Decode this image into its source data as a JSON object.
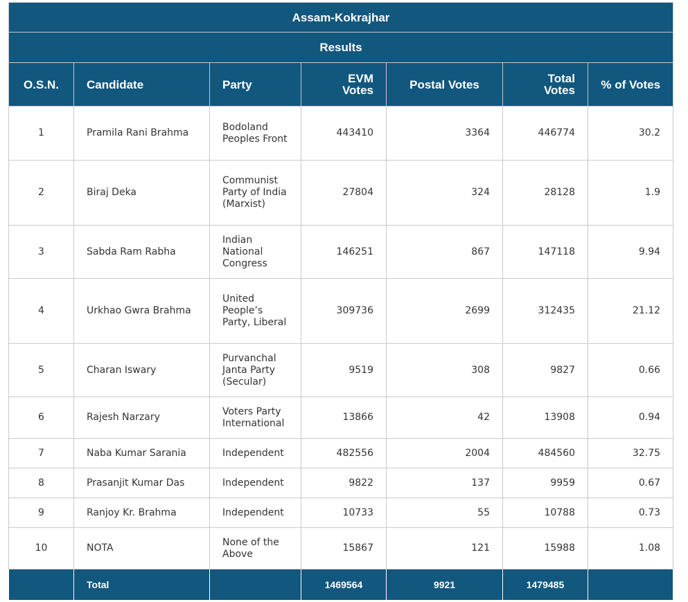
{
  "title": "Assam-Kokrajhar",
  "subtitle": "Results",
  "columns": {
    "osn": "O.S.N.",
    "candidate": "Candidate",
    "party": "Party",
    "evm": "EVM Votes",
    "postal": "Postal Votes",
    "total": "Total Votes",
    "pct": "% of Votes"
  },
  "rows": [
    {
      "osn": "1",
      "candidate": "Pramila Rani Brahma",
      "party": "Bodoland Peoples Front",
      "evm": "443410",
      "postal": "3364",
      "total": "446774",
      "pct": "30.2"
    },
    {
      "osn": "2",
      "candidate": "Biraj Deka",
      "party": "Communist Party of India (Marxist)",
      "evm": "27804",
      "postal": "324",
      "total": "28128",
      "pct": "1.9"
    },
    {
      "osn": "3",
      "candidate": "Sabda Ram Rabha",
      "party": "Indian National Congress",
      "evm": "146251",
      "postal": "867",
      "total": "147118",
      "pct": "9.94"
    },
    {
      "osn": "4",
      "candidate": "Urkhao Gwra Brahma",
      "party": "United People’s Party, Liberal",
      "evm": "309736",
      "postal": "2699",
      "total": "312435",
      "pct": "21.12"
    },
    {
      "osn": "5",
      "candidate": "Charan Iswary",
      "party": "Purvanchal Janta Party (Secular)",
      "evm": "9519",
      "postal": "308",
      "total": "9827",
      "pct": "0.66"
    },
    {
      "osn": "6",
      "candidate": "Rajesh Narzary",
      "party": "Voters Party International",
      "evm": "13866",
      "postal": "42",
      "total": "13908",
      "pct": "0.94"
    },
    {
      "osn": "7",
      "candidate": "Naba Kumar Sarania",
      "party": "Independent",
      "evm": "482556",
      "postal": "2004",
      "total": "484560",
      "pct": "32.75"
    },
    {
      "osn": "8",
      "candidate": "Prasanjit Kumar Das",
      "party": "Independent",
      "evm": "9822",
      "postal": "137",
      "total": "9959",
      "pct": "0.67"
    },
    {
      "osn": "9",
      "candidate": "Ranjoy Kr. Brahma",
      "party": "Independent",
      "evm": "10733",
      "postal": "55",
      "total": "10788",
      "pct": "0.73"
    },
    {
      "osn": "10",
      "candidate": "NOTA",
      "party": "None of the Above",
      "evm": "15867",
      "postal": "121",
      "total": "15988",
      "pct": "1.08"
    }
  ],
  "totals": {
    "label": "Total",
    "evm": "1469564",
    "postal": "9921",
    "total": "1479485",
    "pct": ""
  },
  "colors": {
    "header_bg": "#11577e",
    "header_text": "#ffffff",
    "body_text": "#333333",
    "grid": "#c9c9c9"
  }
}
